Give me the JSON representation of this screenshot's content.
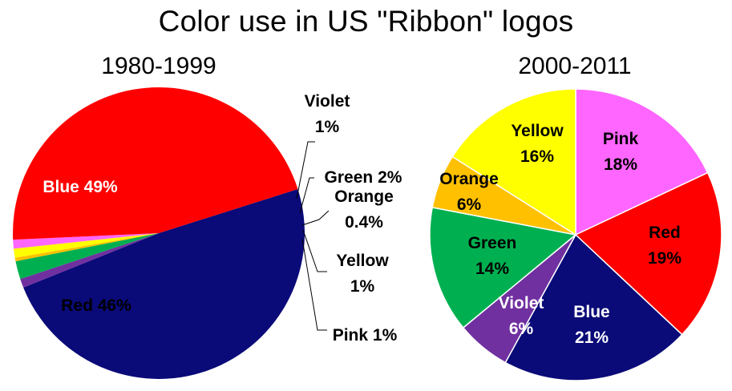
{
  "title": "Color use in US \"Ribbon\" logos",
  "chart_data": [
    {
      "type": "pie",
      "title": "1980-1999",
      "slices": [
        {
          "name": "Blue",
          "value": 49,
          "color": "#0a0a78",
          "label_lines": [
            "Blue 49%"
          ],
          "label_color": "#ffffff",
          "inside": true
        },
        {
          "name": "Violet",
          "value": 1,
          "color": "#7030a0",
          "label_lines": [
            "Violet",
            "1%"
          ],
          "label_color": "#000000",
          "inside": false
        },
        {
          "name": "Green",
          "value": 2,
          "color": "#00b050",
          "label_lines": [
            "Green 2%"
          ],
          "label_color": "#000000",
          "inside": false
        },
        {
          "name": "Orange",
          "value": 0.4,
          "color": "#ffc000",
          "label_lines": [
            "Orange",
            "0.4%"
          ],
          "label_color": "#000000",
          "inside": false
        },
        {
          "name": "Yellow",
          "value": 1,
          "color": "#ffff00",
          "label_lines": [
            "Yellow",
            "1%"
          ],
          "label_color": "#000000",
          "inside": false
        },
        {
          "name": "Pink",
          "value": 1,
          "color": "#ff66ff",
          "label_lines": [
            "Pink 1%"
          ],
          "label_color": "#000000",
          "inside": false
        },
        {
          "name": "Red",
          "value": 46,
          "color": "#ff0000",
          "label_lines": [
            "Red 46%"
          ],
          "label_color": "#000000",
          "inside": true
        }
      ]
    },
    {
      "type": "pie",
      "title": "2000-2011",
      "slices": [
        {
          "name": "Pink",
          "value": 18,
          "color": "#ff66ff",
          "label_lines": [
            "Pink",
            "18%"
          ],
          "label_color": "#000000",
          "inside": true
        },
        {
          "name": "Red",
          "value": 19,
          "color": "#ff0000",
          "label_lines": [
            "Red",
            "19%"
          ],
          "label_color": "#000000",
          "inside": true
        },
        {
          "name": "Blue",
          "value": 21,
          "color": "#0a0a78",
          "label_lines": [
            "Blue",
            "21%"
          ],
          "label_color": "#ffffff",
          "inside": true
        },
        {
          "name": "Violet",
          "value": 6,
          "color": "#7030a0",
          "label_lines": [
            "Violet",
            "6%"
          ],
          "label_color": "#ffffff",
          "inside": true
        },
        {
          "name": "Green",
          "value": 14,
          "color": "#00b050",
          "label_lines": [
            "Green",
            "14%"
          ],
          "label_color": "#000000",
          "inside": true
        },
        {
          "name": "Orange",
          "value": 6,
          "color": "#ffc000",
          "label_lines": [
            "Orange",
            "6%"
          ],
          "label_color": "#000000",
          "inside": true
        },
        {
          "name": "Yellow",
          "value": 16,
          "color": "#ffff00",
          "label_lines": [
            "Yellow",
            "16%"
          ],
          "label_color": "#000000",
          "inside": true
        }
      ]
    }
  ]
}
